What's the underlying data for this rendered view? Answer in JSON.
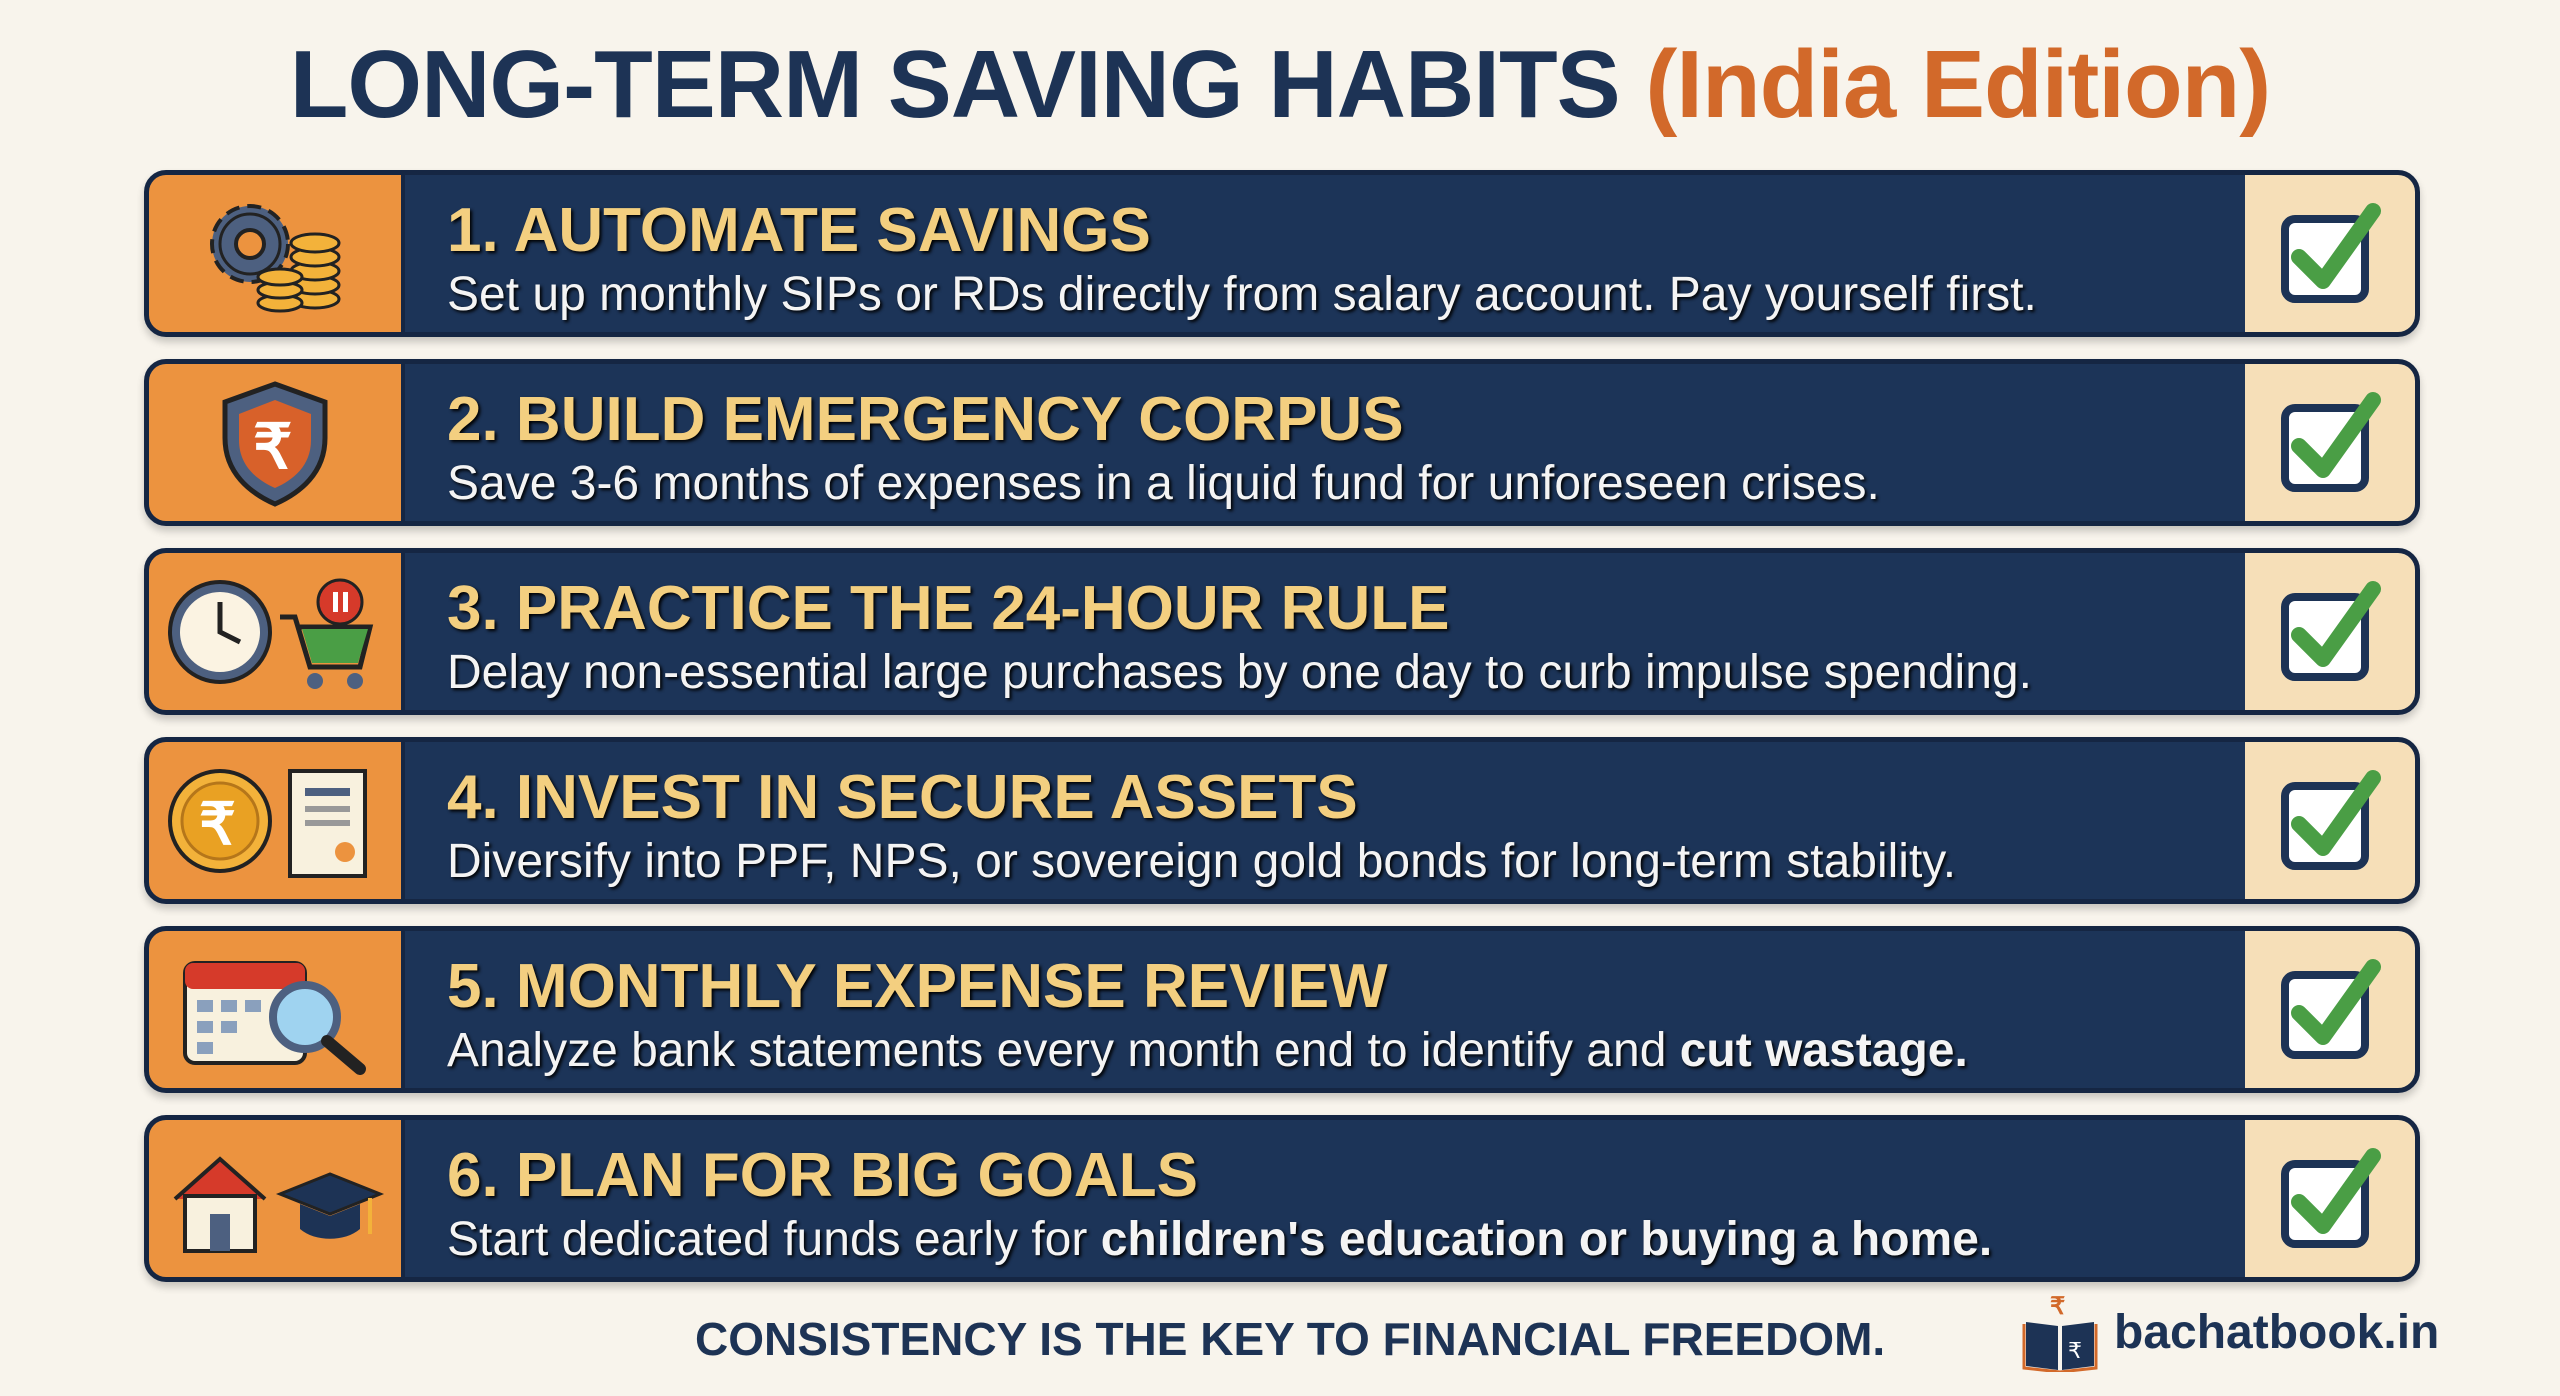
{
  "title": {
    "main": "LONG-TERM SAVING HABITS",
    "accent": "(India Edition)"
  },
  "habits": [
    {
      "heading": "1. AUTOMATE SAVINGS",
      "desc": "Set up monthly SIPs or RDs directly from salary account. Pay yourself first.",
      "desc_bold": "",
      "icon": "gear-coins-icon",
      "checked": true
    },
    {
      "heading": "2. BUILD EMERGENCY CORPUS",
      "desc": "Save 3-6 months of expenses in a liquid fund for unforeseen crises.",
      "desc_bold": "",
      "icon": "rupee-shield-icon",
      "checked": true
    },
    {
      "heading": "3. PRACTICE THE 24-HOUR RULE",
      "desc": "Delay non-essential large purchases by one day to curb impulse spending.",
      "desc_bold": "",
      "icon": "clock-cart-icon",
      "checked": true
    },
    {
      "heading": "4. INVEST IN SECURE ASSETS",
      "desc": "Diversify into PPF, NPS, or sovereign gold bonds for long-term stability.",
      "desc_bold": "",
      "icon": "rupee-coin-certificate-icon",
      "checked": true
    },
    {
      "heading": "5. MONTHLY EXPENSE REVIEW",
      "desc": "Analyze bank statements every month end to identify and ",
      "desc_bold": "cut wastage.",
      "icon": "calendar-magnifier-icon",
      "checked": true
    },
    {
      "heading": "6. PLAN FOR BIG GOALS",
      "desc": "Start dedicated funds early for ",
      "desc_bold": "children's education or buying a home.",
      "icon": "house-graduation-cap-icon",
      "checked": true
    }
  ],
  "footer": {
    "tagline": "CONSISTENCY IS THE KEY TO FINANCIAL FREEDOM.",
    "brand": "bachatbook.in"
  },
  "colors": {
    "navy": "#1c3458",
    "orange": "#ec933f",
    "gold": "#f3cf80",
    "check": "#4a9e45",
    "accent": "#d2692a"
  }
}
